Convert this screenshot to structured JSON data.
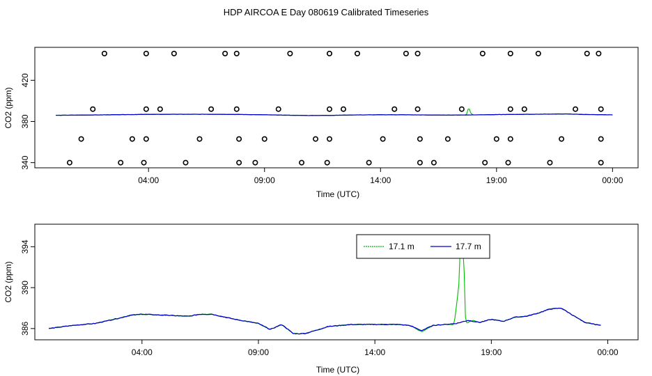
{
  "title": "HDP AIRCOA E  Day 080619  Calibrated Timeseries",
  "chart_data": [
    {
      "type": "scatter",
      "xlabel": "Time (UTC)",
      "ylabel": "CO2 (ppm)",
      "x_ticks": [
        {
          "x": 4,
          "label": "04:00"
        },
        {
          "x": 9,
          "label": "09:00"
        },
        {
          "x": 14,
          "label": "14:00"
        },
        {
          "x": 19,
          "label": "19:00"
        },
        {
          "x": 24,
          "label": "00:00"
        }
      ],
      "y_ticks": [
        340,
        380,
        420
      ],
      "xlim": [
        -0.9,
        25.1
      ],
      "ylim": [
        335,
        452
      ],
      "colors": {
        "low": "#00bb00",
        "high": "#0000cc",
        "points": "#000000"
      },
      "points": [
        {
          "x": 2.1,
          "y": 446
        },
        {
          "x": 3.9,
          "y": 446
        },
        {
          "x": 5.1,
          "y": 446
        },
        {
          "x": 7.3,
          "y": 446
        },
        {
          "x": 7.8,
          "y": 446
        },
        {
          "x": 10.1,
          "y": 446
        },
        {
          "x": 11.8,
          "y": 446
        },
        {
          "x": 13.0,
          "y": 446
        },
        {
          "x": 15.1,
          "y": 446
        },
        {
          "x": 15.6,
          "y": 446
        },
        {
          "x": 18.4,
          "y": 446
        },
        {
          "x": 19.6,
          "y": 446
        },
        {
          "x": 20.8,
          "y": 446
        },
        {
          "x": 22.9,
          "y": 446
        },
        {
          "x": 23.4,
          "y": 446
        },
        {
          "x": 1.6,
          "y": 392
        },
        {
          "x": 3.9,
          "y": 392
        },
        {
          "x": 4.5,
          "y": 392
        },
        {
          "x": 6.7,
          "y": 392
        },
        {
          "x": 7.8,
          "y": 392
        },
        {
          "x": 9.6,
          "y": 392
        },
        {
          "x": 11.8,
          "y": 392
        },
        {
          "x": 12.4,
          "y": 392
        },
        {
          "x": 14.6,
          "y": 392
        },
        {
          "x": 15.6,
          "y": 392
        },
        {
          "x": 17.5,
          "y": 392
        },
        {
          "x": 19.6,
          "y": 392
        },
        {
          "x": 20.2,
          "y": 392
        },
        {
          "x": 22.4,
          "y": 392
        },
        {
          "x": 23.5,
          "y": 392
        },
        {
          "x": 1.1,
          "y": 363
        },
        {
          "x": 3.3,
          "y": 363
        },
        {
          "x": 3.9,
          "y": 363
        },
        {
          "x": 6.2,
          "y": 363
        },
        {
          "x": 7.9,
          "y": 363
        },
        {
          "x": 9.0,
          "y": 363
        },
        {
          "x": 11.2,
          "y": 363
        },
        {
          "x": 11.8,
          "y": 363
        },
        {
          "x": 14.1,
          "y": 363
        },
        {
          "x": 15.7,
          "y": 363
        },
        {
          "x": 16.9,
          "y": 363
        },
        {
          "x": 19.0,
          "y": 363
        },
        {
          "x": 19.6,
          "y": 363
        },
        {
          "x": 21.8,
          "y": 363
        },
        {
          "x": 23.5,
          "y": 363
        },
        {
          "x": 0.6,
          "y": 340
        },
        {
          "x": 2.8,
          "y": 340
        },
        {
          "x": 3.8,
          "y": 340
        },
        {
          "x": 5.6,
          "y": 340
        },
        {
          "x": 7.9,
          "y": 340
        },
        {
          "x": 8.6,
          "y": 340
        },
        {
          "x": 10.6,
          "y": 340
        },
        {
          "x": 11.7,
          "y": 340
        },
        {
          "x": 13.5,
          "y": 340
        },
        {
          "x": 15.7,
          "y": 340
        },
        {
          "x": 16.3,
          "y": 340
        },
        {
          "x": 18.5,
          "y": 340
        },
        {
          "x": 19.5,
          "y": 340
        },
        {
          "x": 21.3,
          "y": 340
        },
        {
          "x": 23.5,
          "y": 340
        }
      ],
      "series": [
        {
          "x": [
            0,
            1,
            2,
            3,
            4,
            5,
            6,
            7,
            8,
            9,
            10,
            11,
            12,
            13,
            14,
            15,
            16,
            17,
            17.7,
            17.8,
            17.9,
            18,
            19,
            20,
            21,
            22,
            23,
            24
          ],
          "values": [
            386.0,
            386.2,
            386.4,
            386.7,
            386.9,
            387.0,
            387.0,
            387.0,
            386.8,
            386.5,
            386.1,
            385.8,
            386.0,
            386.4,
            386.5,
            386.5,
            386.3,
            386.2,
            386.3,
            394.0,
            387.5,
            386.4,
            386.7,
            386.9,
            387.1,
            387.3,
            386.7,
            386.4
          ]
        },
        {
          "x": [
            0,
            1,
            2,
            3,
            4,
            5,
            6,
            7,
            8,
            9,
            10,
            11,
            12,
            13,
            14,
            15,
            16,
            17,
            18,
            19,
            20,
            21,
            22,
            23,
            24
          ],
          "values": [
            386.0,
            386.2,
            386.4,
            386.7,
            386.9,
            387.0,
            387.0,
            387.0,
            386.8,
            386.5,
            386.1,
            385.8,
            386.0,
            386.4,
            386.5,
            386.5,
            386.3,
            386.2,
            386.4,
            386.7,
            386.9,
            387.1,
            387.3,
            386.7,
            386.4
          ]
        }
      ]
    },
    {
      "type": "line",
      "xlabel": "Time (UTC)",
      "ylabel": "CO2 (ppm)",
      "x_ticks": [
        {
          "x": 4,
          "label": "04:00"
        },
        {
          "x": 9,
          "label": "09:00"
        },
        {
          "x": 14,
          "label": "14:00"
        },
        {
          "x": 19,
          "label": "19:00"
        },
        {
          "x": 24,
          "label": "00:00"
        }
      ],
      "y_ticks": [
        386,
        390,
        394
      ],
      "xlim": [
        -0.6,
        25.3
      ],
      "ylim": [
        384.9,
        396.2
      ],
      "legend": {
        "placement": "top-center",
        "entries": [
          "17.1 m",
          "17.7 m"
        ]
      },
      "colors": {
        "low": "#00bb00",
        "high": "#0000cc"
      },
      "series": [
        {
          "name": "17.1 m",
          "x": [
            0,
            1,
            2,
            3,
            3.5,
            4,
            5,
            6,
            6.5,
            7,
            8,
            9,
            9.5,
            10,
            10.5,
            11,
            12,
            13,
            14,
            15,
            15.5,
            16,
            16.5,
            17,
            17.4,
            17.6,
            17.7,
            17.75,
            17.8,
            17.85,
            17.9,
            18.2,
            18.5,
            19,
            19.5,
            20,
            20.5,
            21,
            21.5,
            22,
            23,
            23.7
          ],
          "values": [
            386.0,
            386.3,
            386.5,
            387.0,
            387.3,
            387.4,
            387.3,
            387.2,
            387.4,
            387.4,
            386.9,
            386.5,
            385.9,
            386.4,
            385.5,
            385.5,
            386.2,
            386.4,
            386.4,
            386.4,
            386.3,
            385.7,
            386.3,
            386.4,
            386.4,
            390.0,
            396.0,
            392.0,
            396.0,
            389.0,
            386.5,
            386.8,
            386.6,
            386.9,
            386.7,
            387.1,
            387.2,
            387.5,
            387.9,
            388.0,
            386.6,
            386.3
          ]
        },
        {
          "name": "17.7 m",
          "x": [
            0,
            1,
            2,
            3,
            3.5,
            4,
            5,
            6,
            6.5,
            7,
            8,
            9,
            9.5,
            10,
            10.5,
            11,
            12,
            13,
            14,
            15,
            15.5,
            16,
            16.5,
            17,
            17.5,
            18,
            18.5,
            19,
            19.5,
            20,
            20.5,
            21,
            21.5,
            22,
            23,
            23.7
          ],
          "values": [
            386.0,
            386.3,
            386.5,
            387.0,
            387.3,
            387.4,
            387.3,
            387.2,
            387.4,
            387.4,
            386.9,
            386.5,
            385.9,
            386.4,
            385.5,
            385.5,
            386.2,
            386.4,
            386.4,
            386.4,
            386.3,
            385.8,
            386.3,
            386.4,
            386.5,
            386.8,
            386.6,
            386.9,
            386.7,
            387.1,
            387.2,
            387.5,
            387.9,
            388.0,
            386.6,
            386.3
          ]
        }
      ]
    }
  ]
}
